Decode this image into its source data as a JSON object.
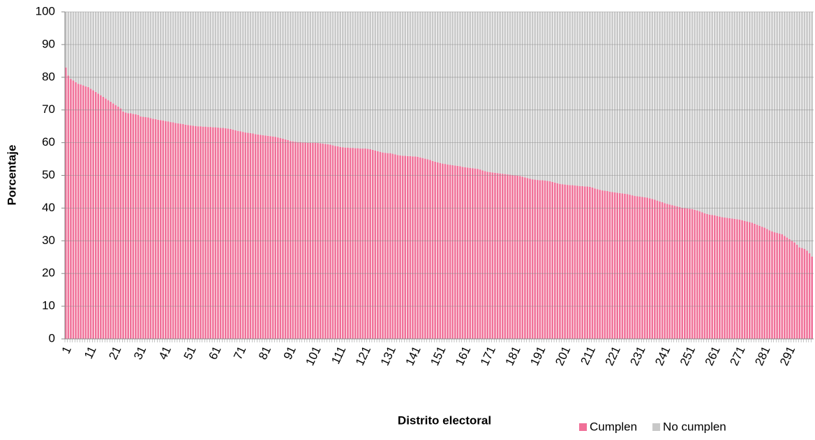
{
  "chart_data": {
    "type": "stacked_bar",
    "x_label": "Distrito electoral",
    "y_label": "Porcentaje",
    "categories": [
      "1",
      null,
      null,
      null,
      null,
      null,
      null,
      null,
      null,
      null,
      "11",
      null,
      null,
      null,
      null,
      null,
      null,
      null,
      null,
      null,
      "21",
      null,
      null,
      null,
      null,
      null,
      null,
      null,
      null,
      null,
      "31",
      null,
      null,
      null,
      null,
      null,
      null,
      null,
      null,
      null,
      "41",
      null,
      null,
      null,
      null,
      null,
      null,
      null,
      null,
      null,
      "51",
      null,
      null,
      null,
      null,
      null,
      null,
      null,
      null,
      null,
      "61",
      null,
      null,
      null,
      null,
      null,
      null,
      null,
      null,
      null,
      "71",
      null,
      null,
      null,
      null,
      null,
      null,
      null,
      null,
      null,
      "81",
      null,
      null,
      null,
      null,
      null,
      null,
      null,
      null,
      null,
      "91",
      null,
      null,
      null,
      null,
      null,
      null,
      null,
      null,
      null,
      "101",
      null,
      null,
      null,
      null,
      null,
      null,
      null,
      null,
      null,
      "111",
      null,
      null,
      null,
      null,
      null,
      null,
      null,
      null,
      null,
      "121",
      null,
      null,
      null,
      null,
      null,
      null,
      null,
      null,
      null,
      "131",
      null,
      null,
      null,
      null,
      null,
      null,
      null,
      null,
      null,
      "141",
      null,
      null,
      null,
      null,
      null,
      null,
      null,
      null,
      null,
      "151",
      null,
      null,
      null,
      null,
      null,
      null,
      null,
      null,
      null,
      "161",
      null,
      null,
      null,
      null,
      null,
      null,
      null,
      null,
      null,
      "171",
      null,
      null,
      null,
      null,
      null,
      null,
      null,
      null,
      null,
      "181",
      null,
      null,
      null,
      null,
      null,
      null,
      null,
      null,
      null,
      "191",
      null,
      null,
      null,
      null,
      null,
      null,
      null,
      null,
      null,
      "201",
      null,
      null,
      null,
      null,
      null,
      null,
      null,
      null,
      null,
      "211",
      null,
      null,
      null,
      null,
      null,
      null,
      null,
      null,
      null,
      "221",
      null,
      null,
      null,
      null,
      null,
      null,
      null,
      null,
      null,
      "231",
      null,
      null,
      null,
      null,
      null,
      null,
      null,
      null,
      null,
      "241",
      null,
      null,
      null,
      null,
      null,
      null,
      null,
      null,
      null,
      "251",
      null,
      null,
      null,
      null,
      null,
      null,
      null,
      null,
      null,
      "261",
      null,
      null,
      null,
      null,
      null,
      null,
      null,
      null,
      null,
      "271",
      null,
      null,
      null,
      null,
      null,
      null,
      null,
      null,
      null,
      "281",
      null,
      null,
      null,
      null,
      null,
      null,
      null,
      null,
      null,
      "291",
      null,
      null,
      null,
      null,
      null,
      null,
      null,
      null,
      null
    ],
    "series": [
      {
        "name": "Cumplen",
        "color": "#f07098",
        "values": [
          83.0,
          80.5,
          79.5,
          79.0,
          78.5,
          78.0,
          77.8,
          77.5,
          77.2,
          77.0,
          76.5,
          76.0,
          75.5,
          75.0,
          74.5,
          74.0,
          73.5,
          73.0,
          72.5,
          72.0,
          71.5,
          71.0,
          70.5,
          69.5,
          69.2,
          69.0,
          69.0,
          68.8,
          68.7,
          68.5,
          68.0,
          67.9,
          67.8,
          67.7,
          67.5,
          67.3,
          67.2,
          67.0,
          66.9,
          66.8,
          66.6,
          66.5,
          66.3,
          66.2,
          66.0,
          65.9,
          65.8,
          65.7,
          65.5,
          65.4,
          65.3,
          65.2,
          65.1,
          65.0,
          65.0,
          64.9,
          64.9,
          64.8,
          64.8,
          64.7,
          64.7,
          64.6,
          64.5,
          64.5,
          64.4,
          64.3,
          64.2,
          64.0,
          63.8,
          63.6,
          63.5,
          63.3,
          63.1,
          63.0,
          62.9,
          62.8,
          62.6,
          62.5,
          62.4,
          62.3,
          62.2,
          62.1,
          62.0,
          61.9,
          61.8,
          61.6,
          61.4,
          61.2,
          61.0,
          60.8,
          60.5,
          60.4,
          60.3,
          60.2,
          60.2,
          60.1,
          60.1,
          60.0,
          60.0,
          60.0,
          60.0,
          59.9,
          59.8,
          59.7,
          59.6,
          59.5,
          59.4,
          59.2,
          59.0,
          58.9,
          58.7,
          58.6,
          58.5,
          58.5,
          58.4,
          58.4,
          58.3,
          58.3,
          58.2,
          58.2,
          58.2,
          58.1,
          58.0,
          57.8,
          57.6,
          57.4,
          57.2,
          57.0,
          56.9,
          56.8,
          56.8,
          56.6,
          56.4,
          56.2,
          56.1,
          56.0,
          56.0,
          55.9,
          55.9,
          55.8,
          55.8,
          55.7,
          55.5,
          55.3,
          55.1,
          54.9,
          54.7,
          54.4,
          54.2,
          54.0,
          53.8,
          53.6,
          53.5,
          53.3,
          53.2,
          53.1,
          53.0,
          52.9,
          52.8,
          52.6,
          52.5,
          52.4,
          52.3,
          52.2,
          52.1,
          52.0,
          51.8,
          51.5,
          51.3,
          51.1,
          51.0,
          50.9,
          50.8,
          50.7,
          50.6,
          50.5,
          50.4,
          50.3,
          50.2,
          50.1,
          50.0,
          49.9,
          49.8,
          49.6,
          49.4,
          49.2,
          49.0,
          48.8,
          48.7,
          48.6,
          48.5,
          48.5,
          48.4,
          48.3,
          48.2,
          48.0,
          47.8,
          47.6,
          47.4,
          47.3,
          47.2,
          47.1,
          47.0,
          47.0,
          46.9,
          46.8,
          46.7,
          46.7,
          46.6,
          46.6,
          46.5,
          46.3,
          46.0,
          45.8,
          45.6,
          45.4,
          45.3,
          45.2,
          45.0,
          44.9,
          44.8,
          44.7,
          44.6,
          44.5,
          44.4,
          44.3,
          44.1,
          43.9,
          43.7,
          43.6,
          43.5,
          43.4,
          43.3,
          43.2,
          43.0,
          42.8,
          42.6,
          42.3,
          42.0,
          41.8,
          41.5,
          41.3,
          41.1,
          40.9,
          40.7,
          40.5,
          40.3,
          40.1,
          40.0,
          39.9,
          39.8,
          39.7,
          39.5,
          39.3,
          39.0,
          38.7,
          38.4,
          38.2,
          38.0,
          37.9,
          37.8,
          37.6,
          37.4,
          37.2,
          37.1,
          37.0,
          36.9,
          36.8,
          36.7,
          36.6,
          36.5,
          36.3,
          36.1,
          35.9,
          35.7,
          35.5,
          35.2,
          34.9,
          34.6,
          34.3,
          34.0,
          33.6,
          33.2,
          32.9,
          32.6,
          32.4,
          32.2,
          32.0,
          31.5,
          31.0,
          30.5,
          30.0,
          29.5,
          28.8,
          28.0,
          27.8,
          27.5,
          27.0,
          26.2,
          25.2
        ]
      },
      {
        "name": "No cumplen",
        "color": "#c8c8c8",
        "values": [
          17.0,
          19.5,
          20.5,
          21.0,
          21.5,
          22.0,
          22.2,
          22.5,
          22.8,
          23.0,
          23.5,
          24.0,
          24.5,
          25.0,
          25.5,
          26.0,
          26.5,
          27.0,
          27.5,
          28.0,
          28.5,
          29.0,
          29.5,
          30.5,
          30.8,
          31.0,
          31.0,
          31.2,
          31.3,
          31.5,
          32.0,
          32.1,
          32.2,
          32.3,
          32.5,
          32.7,
          32.8,
          33.0,
          33.1,
          33.2,
          33.4,
          33.5,
          33.7,
          33.8,
          34.0,
          34.1,
          34.2,
          34.3,
          34.5,
          34.6,
          34.7,
          34.8,
          34.9,
          35.0,
          35.0,
          35.1,
          35.1,
          35.2,
          35.2,
          35.3,
          35.3,
          35.4,
          35.5,
          35.5,
          35.6,
          35.7,
          35.8,
          36.0,
          36.2,
          36.4,
          36.5,
          36.7,
          36.9,
          37.0,
          37.1,
          37.2,
          37.4,
          37.5,
          37.6,
          37.7,
          37.8,
          37.9,
          38.0,
          38.1,
          38.2,
          38.4,
          38.6,
          38.8,
          39.0,
          39.2,
          39.5,
          39.6,
          39.7,
          39.8,
          39.8,
          39.9,
          39.9,
          40.0,
          40.0,
          40.0,
          40.0,
          40.1,
          40.2,
          40.3,
          40.4,
          40.5,
          40.6,
          40.8,
          41.0,
          41.1,
          41.3,
          41.4,
          41.5,
          41.5,
          41.6,
          41.6,
          41.7,
          41.7,
          41.8,
          41.8,
          41.8,
          41.9,
          42.0,
          42.2,
          42.4,
          42.6,
          42.8,
          43.0,
          43.1,
          43.2,
          43.2,
          43.4,
          43.6,
          43.8,
          43.9,
          44.0,
          44.0,
          44.1,
          44.1,
          44.2,
          44.2,
          44.3,
          44.5,
          44.7,
          44.9,
          45.1,
          45.3,
          45.6,
          45.8,
          46.0,
          46.2,
          46.4,
          46.5,
          46.7,
          46.8,
          46.9,
          47.0,
          47.1,
          47.2,
          47.4,
          47.5,
          47.6,
          47.7,
          47.8,
          47.9,
          48.0,
          48.2,
          48.5,
          48.7,
          48.9,
          49.0,
          49.1,
          49.2,
          49.3,
          49.4,
          49.5,
          49.6,
          49.7,
          49.8,
          49.9,
          50.0,
          50.1,
          50.2,
          50.4,
          50.6,
          50.8,
          51.0,
          51.2,
          51.3,
          51.4,
          51.5,
          51.5,
          51.6,
          51.7,
          51.8,
          52.0,
          52.2,
          52.4,
          52.6,
          52.7,
          52.8,
          52.9,
          53.0,
          53.0,
          53.1,
          53.2,
          53.3,
          53.3,
          53.4,
          53.4,
          53.5,
          53.7,
          54.0,
          54.2,
          54.4,
          54.6,
          54.7,
          54.8,
          55.0,
          55.1,
          55.2,
          55.3,
          55.4,
          55.5,
          55.6,
          55.7,
          55.9,
          56.1,
          56.3,
          56.4,
          56.5,
          56.6,
          56.7,
          56.8,
          57.0,
          57.2,
          57.4,
          57.7,
          58.0,
          58.2,
          58.5,
          58.7,
          58.9,
          59.1,
          59.3,
          59.5,
          59.7,
          59.9,
          60.0,
          60.1,
          60.2,
          60.3,
          60.5,
          60.7,
          61.0,
          61.3,
          61.6,
          61.8,
          62.0,
          62.1,
          62.2,
          62.4,
          62.6,
          62.8,
          62.9,
          63.0,
          63.1,
          63.2,
          63.3,
          63.4,
          63.5,
          63.7,
          63.9,
          64.1,
          64.3,
          64.5,
          64.8,
          65.1,
          65.4,
          65.7,
          66.0,
          66.4,
          66.8,
          67.1,
          67.4,
          67.6,
          67.8,
          68.0,
          68.5,
          69.0,
          69.5,
          70.0,
          70.5,
          71.2,
          72.0,
          72.2,
          72.5,
          73.0,
          73.8,
          74.8
        ]
      }
    ],
    "ylim": [
      0,
      100
    ],
    "yticks": [
      0,
      10,
      20,
      30,
      40,
      50,
      60,
      70,
      80,
      90,
      100
    ],
    "grid": true,
    "legend": "bottom-right"
  }
}
